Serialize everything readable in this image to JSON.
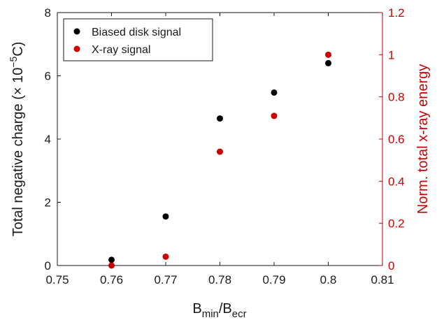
{
  "chart_data": {
    "type": "scatter",
    "x": [
      0.76,
      0.77,
      0.78,
      0.79,
      0.8
    ],
    "series": [
      {
        "name": "Biased disk signal",
        "axis": "left",
        "values": [
          0.18,
          1.55,
          4.65,
          5.47,
          6.4
        ],
        "color": "#000000"
      },
      {
        "name": "X-ray signal",
        "axis": "right",
        "values": [
          0.0,
          0.042,
          0.54,
          0.71,
          1.0
        ],
        "color": "#cc0000"
      }
    ],
    "xlabel": {
      "main": "B",
      "sub1": "min",
      "sep": "/B",
      "sub2": "ecr"
    },
    "ylabel": {
      "pre": "Total negative charge (",
      "times": "×",
      "ten": " 10",
      "exp": "−5",
      "post": "C)"
    },
    "ylabel_right": "Norm. total x-ray energy",
    "xlim": [
      0.75,
      0.81
    ],
    "ylim": [
      0,
      8
    ],
    "ylim_right": [
      0,
      1.2
    ],
    "xticks": [
      "0.75",
      "0.76",
      "0.77",
      "0.78",
      "0.79",
      "0.8",
      "0.81"
    ],
    "yticks": [
      "0",
      "2",
      "4",
      "6",
      "8"
    ],
    "yticks_right": [
      "0",
      "0.2",
      "0.4",
      "0.6",
      "0.8",
      "1",
      "1.2"
    ],
    "grid": false,
    "legend_position": "top-left",
    "right_axis_color": "#cc0000"
  }
}
